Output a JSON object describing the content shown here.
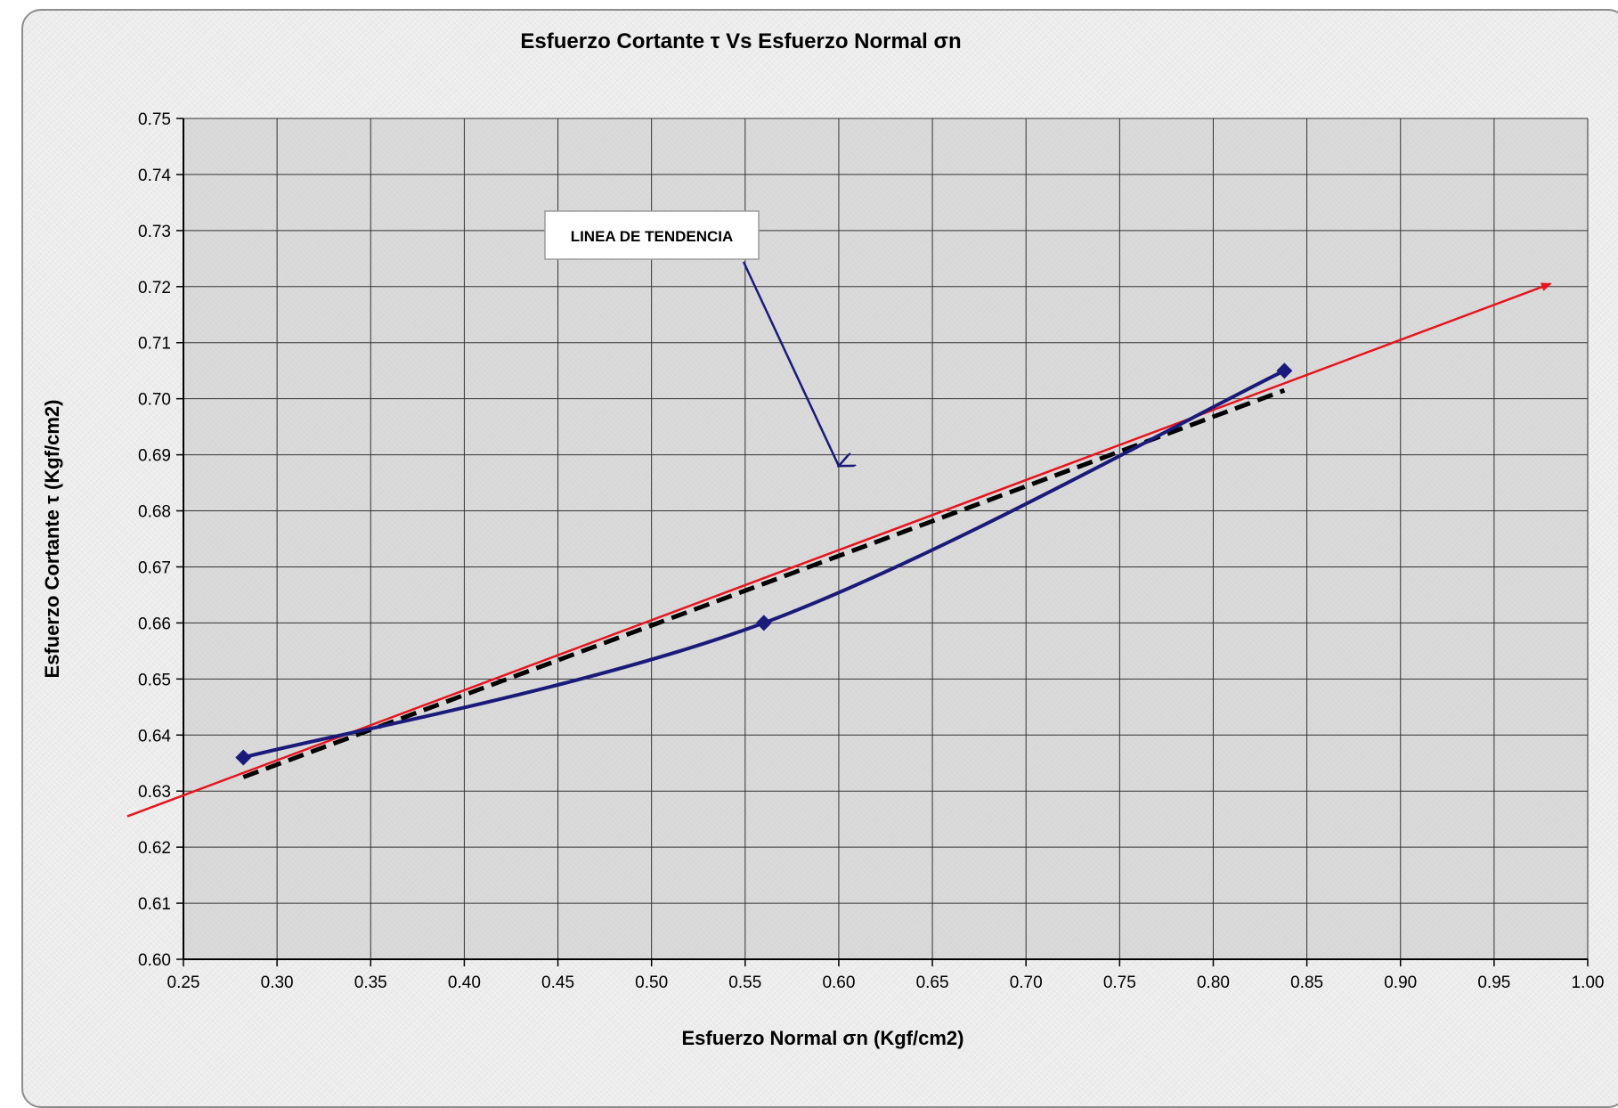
{
  "chart_data": {
    "type": "line",
    "title": "Esfuerzo Cortante τ Vs Esfuerzo Normal σn",
    "xlabel": "Esfuerzo Normal σn (Kgf/cm2)",
    "ylabel": "Esfuerzo Cortante τ (Kgf/cm2)",
    "xlim": [
      0.25,
      1.0
    ],
    "ylim": [
      0.6,
      0.75
    ],
    "x_ticks": [
      "0.25",
      "0.30",
      "0.35",
      "0.40",
      "0.45",
      "0.50",
      "0.55",
      "0.60",
      "0.65",
      "0.70",
      "0.75",
      "0.80",
      "0.85",
      "0.90",
      "0.95",
      "1.00"
    ],
    "y_ticks": [
      "0.60",
      "0.61",
      "0.62",
      "0.63",
      "0.64",
      "0.65",
      "0.66",
      "0.67",
      "0.68",
      "0.69",
      "0.70",
      "0.71",
      "0.72",
      "0.73",
      "0.74",
      "0.75"
    ],
    "grid": true,
    "series": [
      {
        "points": [
          [
            0.282,
            0.636
          ],
          [
            0.56,
            0.66
          ],
          [
            0.838,
            0.705
          ]
        ],
        "color": "#1a1a7a",
        "style": "smooth-line-diamond-markers"
      },
      {
        "points": [
          [
            0.282,
            0.6325
          ],
          [
            0.838,
            0.7015
          ]
        ],
        "color": "#000000",
        "style": "dashed"
      },
      {
        "points": [
          [
            0.22,
            0.6255
          ],
          [
            0.98,
            0.7205
          ]
        ],
        "color": "#e8141c",
        "style": "line-arrow"
      }
    ],
    "annotations": [
      {
        "text": "LINEA DE TENDENCIA",
        "target": [
          0.6,
          0.688
        ]
      }
    ]
  }
}
